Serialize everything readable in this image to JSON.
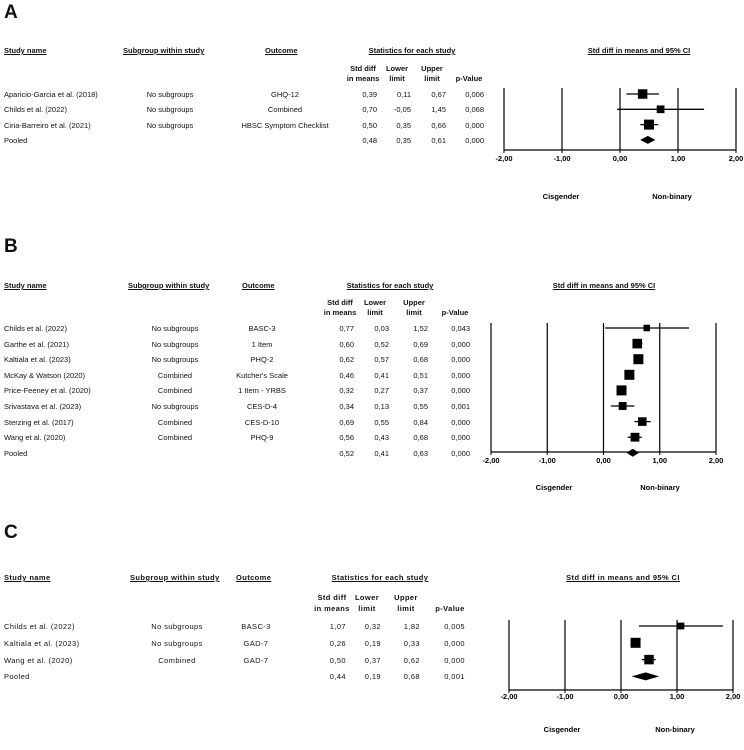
{
  "panels": [
    {
      "letter": "A",
      "headers": {
        "study": "Study name",
        "subgroup": "Subgroup within study",
        "outcome": "Outcome",
        "stats": "Statistics for each study",
        "plot": "Std diff in means and 95% CI",
        "col_std_1": "Std diff",
        "col_std_2": "in means",
        "col_lower_1": "Lower",
        "col_lower_2": "limit",
        "col_upper_1": "Upper",
        "col_upper_2": "limit",
        "col_p": "p-Value"
      },
      "rows": [
        {
          "study": "Aparicio-Garcia et al. (2018)",
          "subgroup": "No subgroups",
          "outcome": "GHQ-12",
          "std": "0,39",
          "lower": "0,11",
          "upper": "0,67",
          "p": "0,006"
        },
        {
          "study": "Childs et al. (2022)",
          "subgroup": "No subgroups",
          "outcome": "Combined",
          "std": "0,70",
          "lower": "-0,05",
          "upper": "1,45",
          "p": "0,068"
        },
        {
          "study": "Ciria-Barreiro et al. (2021)",
          "subgroup": "No subgroups",
          "outcome": "HBSC Symptom Checklist",
          "std": "0,50",
          "lower": "0,35",
          "upper": "0,66",
          "p": "0,000"
        }
      ],
      "pooled": {
        "study": "Pooled",
        "std": "0,48",
        "lower": "0,35",
        "upper": "0,61",
        "p": "0,000"
      },
      "axis_ticks": [
        "-2,00",
        "-1,00",
        "0,00",
        "1,00",
        "2,00"
      ],
      "favors_left": "Cisgender",
      "favors_right": "Non-binary"
    },
    {
      "letter": "B",
      "headers": {
        "study": "Study name",
        "subgroup": "Subgroup within study",
        "outcome": "Outcome",
        "stats": "Statistics for each study",
        "plot": "Std diff in means and 95% CI",
        "col_std_1": "Std diff",
        "col_std_2": "in means",
        "col_lower_1": "Lower",
        "col_lower_2": "limit",
        "col_upper_1": "Upper",
        "col_upper_2": "limit",
        "col_p": "p-Value"
      },
      "rows": [
        {
          "study": "Childs et al. (2022)",
          "subgroup": "No subgroups",
          "outcome": "BASC-3",
          "std": "0,77",
          "lower": "0,03",
          "upper": "1,52",
          "p": "0,043"
        },
        {
          "study": "Garthe et al. (2021)",
          "subgroup": "No subgroups",
          "outcome": "1 Item",
          "std": "0,60",
          "lower": "0,52",
          "upper": "0,69",
          "p": "0,000"
        },
        {
          "study": "Kaltiala et al. (2023)",
          "subgroup": "No subgroups",
          "outcome": "PHQ-2",
          "std": "0,62",
          "lower": "0,57",
          "upper": "0,68",
          "p": "0,000"
        },
        {
          "study": "McKay & Watson (2020)",
          "subgroup": "Combined",
          "outcome": "Kutcher's Scale",
          "std": "0,46",
          "lower": "0,41",
          "upper": "0,51",
          "p": "0,000"
        },
        {
          "study": "Price-Feeney et al. (2020)",
          "subgroup": "Combined",
          "outcome": "1 Item - YRBS",
          "std": "0,32",
          "lower": "0,27",
          "upper": "0,37",
          "p": "0,000"
        },
        {
          "study": "Srivastava et al. (2023)",
          "subgroup": "No subgroups",
          "outcome": "CES-D-4",
          "std": "0,34",
          "lower": "0,13",
          "upper": "0,55",
          "p": "0,001"
        },
        {
          "study": "Sterzing et al. (2017)",
          "subgroup": "Combined",
          "outcome": "CES-D-10",
          "std": "0,69",
          "lower": "0,55",
          "upper": "0,84",
          "p": "0,000"
        },
        {
          "study": "Wang et al. (2020)",
          "subgroup": "Combined",
          "outcome": "PHQ-9",
          "std": "0,56",
          "lower": "0,43",
          "upper": "0,68",
          "p": "0,000"
        }
      ],
      "pooled": {
        "study": "Pooled",
        "std": "0,52",
        "lower": "0,41",
        "upper": "0,63",
        "p": "0,000"
      },
      "axis_ticks": [
        "-2,00",
        "-1,00",
        "0,00",
        "1,00",
        "2,00"
      ],
      "favors_left": "Cisgender",
      "favors_right": "Non-binary"
    },
    {
      "letter": "C",
      "headers": {
        "study": "Study name",
        "subgroup": "Subgroup within study",
        "outcome": "Outcome",
        "stats": "Statistics for each study",
        "plot": "Std diff in means and 95% CI",
        "col_std_1": "Std diff",
        "col_std_2": "in means",
        "col_lower_1": "Lower",
        "col_lower_2": "limit",
        "col_upper_1": "Upper",
        "col_upper_2": "limit",
        "col_p": "p-Value"
      },
      "rows": [
        {
          "study": "Childs et al. (2022)",
          "subgroup": "No subgroups",
          "outcome": "BASC-3",
          "std": "1,07",
          "lower": "0,32",
          "upper": "1,82",
          "p": "0,005"
        },
        {
          "study": "Kaltiala et al. (2023)",
          "subgroup": "No subgroups",
          "outcome": "GAD-7",
          "std": "0,26",
          "lower": "0,19",
          "upper": "0,33",
          "p": "0,000"
        },
        {
          "study": "Wang et al. (2020)",
          "subgroup": "Combined",
          "outcome": "GAD-7",
          "std": "0,50",
          "lower": "0,37",
          "upper": "0,62",
          "p": "0,000"
        }
      ],
      "pooled": {
        "study": "Pooled",
        "std": "0,44",
        "lower": "0,19",
        "upper": "0,68",
        "p": "0,001"
      },
      "axis_ticks": [
        "-2,00",
        "-1,00",
        "0,00",
        "1,00",
        "2,00"
      ],
      "favors_left": "Cisgender",
      "favors_right": "Non-binary"
    }
  ],
  "chart_data": [
    {
      "type": "forest",
      "title": "A",
      "xlabel": "Std diff in means and 95% CI",
      "xlim": [
        -2,
        2
      ],
      "favors": [
        "Cisgender",
        "Non-binary"
      ],
      "studies": [
        "Aparicio-Garcia et al. (2018)",
        "Childs et al. (2022)",
        "Ciria-Barreiro et al. (2021)"
      ],
      "estimate": [
        0.39,
        0.7,
        0.5
      ],
      "lower": [
        0.11,
        -0.05,
        0.35
      ],
      "upper": [
        0.67,
        1.45,
        0.66
      ],
      "pooled": {
        "estimate": 0.48,
        "lower": 0.35,
        "upper": 0.61
      }
    },
    {
      "type": "forest",
      "title": "B",
      "xlabel": "Std diff in means and 95% CI",
      "xlim": [
        -2,
        2
      ],
      "favors": [
        "Cisgender",
        "Non-binary"
      ],
      "studies": [
        "Childs et al. (2022)",
        "Garthe et al. (2021)",
        "Kaltiala et al. (2023)",
        "McKay & Watson (2020)",
        "Price-Feeney et al. (2020)",
        "Srivastava et al. (2023)",
        "Sterzing et al. (2017)",
        "Wang et al. (2020)"
      ],
      "estimate": [
        0.77,
        0.6,
        0.62,
        0.46,
        0.32,
        0.34,
        0.69,
        0.56
      ],
      "lower": [
        0.03,
        0.52,
        0.57,
        0.41,
        0.27,
        0.13,
        0.55,
        0.43
      ],
      "upper": [
        1.52,
        0.69,
        0.68,
        0.51,
        0.37,
        0.55,
        0.84,
        0.68
      ],
      "pooled": {
        "estimate": 0.52,
        "lower": 0.41,
        "upper": 0.63
      }
    },
    {
      "type": "forest",
      "title": "C",
      "xlabel": "Std diff in means and 95% CI",
      "xlim": [
        -2,
        2
      ],
      "favors": [
        "Cisgender",
        "Non-binary"
      ],
      "studies": [
        "Childs et al. (2022)",
        "Kaltiala et al. (2023)",
        "Wang et al. (2020)"
      ],
      "estimate": [
        1.07,
        0.26,
        0.5
      ],
      "lower": [
        0.32,
        0.19,
        0.37
      ],
      "upper": [
        1.82,
        0.33,
        0.62
      ],
      "pooled": {
        "estimate": 0.44,
        "lower": 0.19,
        "upper": 0.68
      }
    }
  ]
}
